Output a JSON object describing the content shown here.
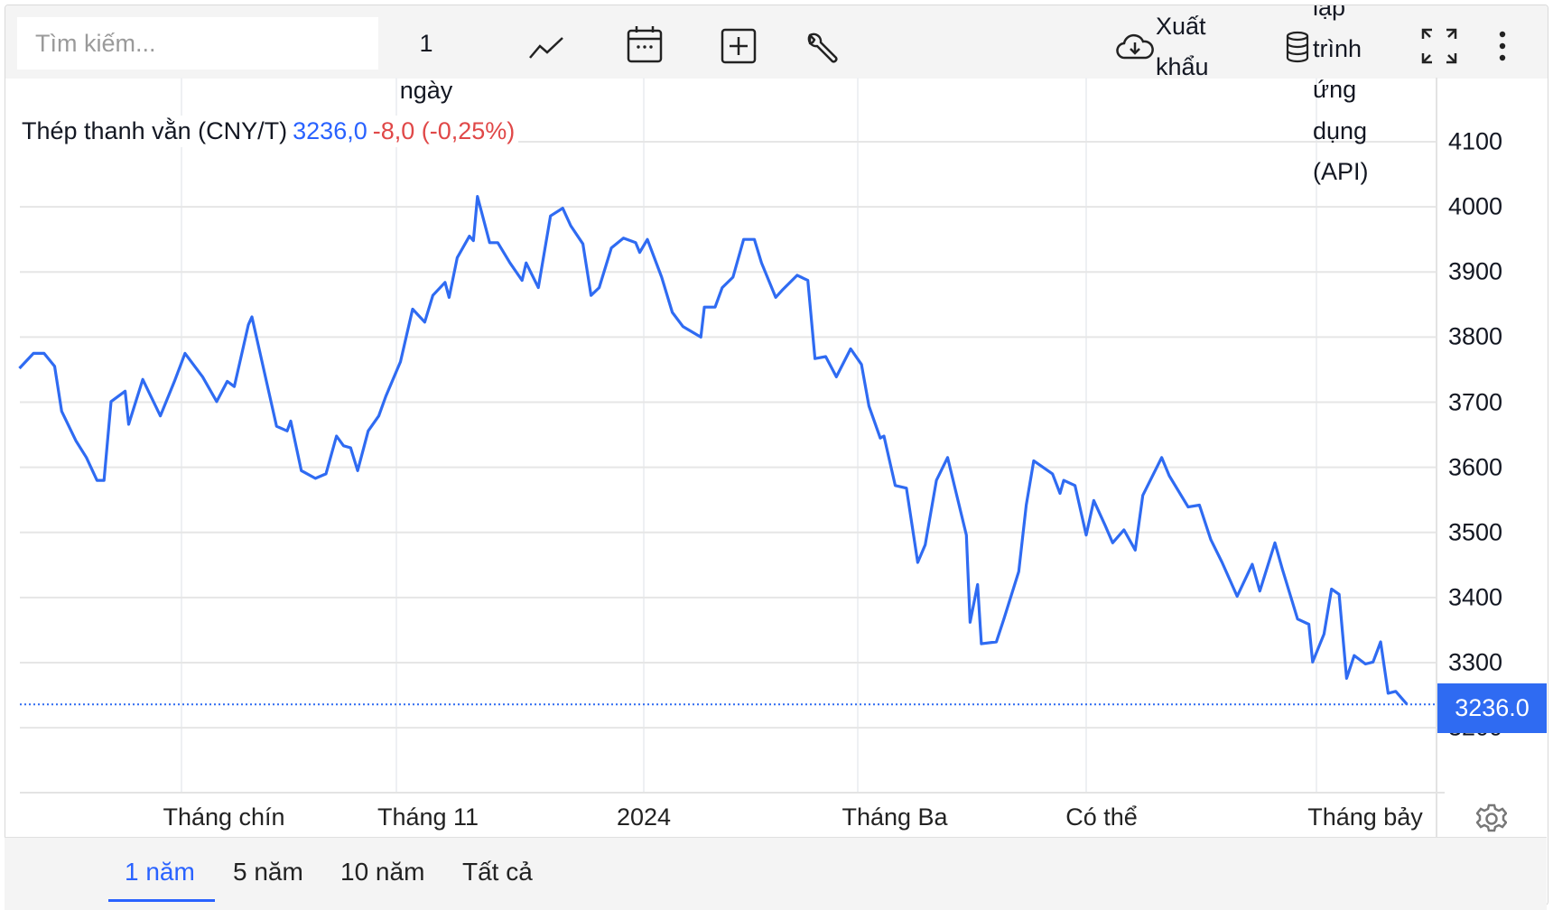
{
  "toolbar": {
    "search_placeholder": "Tìm kiếm...",
    "interval_number": "1",
    "interval_unit": "ngày",
    "icons": [
      "line-chart-icon",
      "calendar-icon",
      "add-indicator-icon",
      "wrench-icon",
      "cloud-download-icon",
      "database-icon",
      "fullscreen-icon",
      "more-vertical-icon"
    ],
    "export_line1": "Xuất",
    "export_line2": "khẩu",
    "api_lines": [
      "lập",
      "trình",
      "ứng",
      "dụng",
      "(API)"
    ]
  },
  "legend": {
    "name": "Thép thanh vằn (CNY/T)",
    "price": "3236,0",
    "change": "-8,0 (-0,25%)"
  },
  "last_price_label": "3236.0",
  "range_buttons": [
    {
      "label": "1 năm",
      "active": true
    },
    {
      "label": "5 năm",
      "active": false
    },
    {
      "label": "10 năm",
      "active": false
    },
    {
      "label": "Tất cả",
      "active": false
    }
  ],
  "colors": {
    "line": "#2f6bf2",
    "change_negative": "#e04848",
    "accent": "#2962ff"
  },
  "chart_data": {
    "type": "line",
    "title": "",
    "xlabel": "",
    "ylabel": "",
    "ylim": [
      3100,
      4150
    ],
    "yticks": [
      4100,
      4000,
      3900,
      3800,
      3700,
      3600,
      3500,
      3400,
      3300,
      3200
    ],
    "xticks": [
      {
        "date": "2023-09-01",
        "label": "Tháng chín"
      },
      {
        "date": "2023-11-01",
        "label": "Tháng 11"
      },
      {
        "date": "2024-01-01",
        "label": "2024"
      },
      {
        "date": "2024-03-01",
        "label": "Tháng Ba"
      },
      {
        "date": "2024-05-01",
        "label": "Có thể"
      },
      {
        "date": "2024-07-01",
        "label": "Tháng bảy"
      }
    ],
    "grid": true,
    "last_value": 3236.0,
    "series": [
      {
        "points": [
          [
            "2023-07-17",
            3752
          ],
          [
            "2023-07-21",
            3775
          ],
          [
            "2023-07-24",
            3775
          ],
          [
            "2023-07-27",
            3755
          ],
          [
            "2023-07-29",
            3686
          ],
          [
            "2023-08-02",
            3641
          ],
          [
            "2023-08-05",
            3615
          ],
          [
            "2023-08-08",
            3580
          ],
          [
            "2023-08-10",
            3580
          ],
          [
            "2023-08-12",
            3701
          ],
          [
            "2023-08-16",
            3717
          ],
          [
            "2023-08-17",
            3666
          ],
          [
            "2023-08-21",
            3735
          ],
          [
            "2023-08-26",
            3679
          ],
          [
            "2023-08-30",
            3732
          ],
          [
            "2023-09-02",
            3775
          ],
          [
            "2023-09-07",
            3739
          ],
          [
            "2023-09-11",
            3701
          ],
          [
            "2023-09-14",
            3732
          ],
          [
            "2023-09-16",
            3724
          ],
          [
            "2023-09-20",
            3819
          ],
          [
            "2023-09-21",
            3831
          ],
          [
            "2023-09-28",
            3663
          ],
          [
            "2023-10-01",
            3656
          ],
          [
            "2023-10-02",
            3671
          ],
          [
            "2023-10-05",
            3595
          ],
          [
            "2023-10-09",
            3583
          ],
          [
            "2023-10-12",
            3590
          ],
          [
            "2023-10-15",
            3648
          ],
          [
            "2023-10-17",
            3633
          ],
          [
            "2023-10-19",
            3630
          ],
          [
            "2023-10-21",
            3595
          ],
          [
            "2023-10-24",
            3656
          ],
          [
            "2023-10-27",
            3679
          ],
          [
            "2023-10-29",
            3709
          ],
          [
            "2023-11-02",
            3762
          ],
          [
            "2023-11-05",
            3843
          ],
          [
            "2023-11-08",
            3823
          ],
          [
            "2023-11-10",
            3864
          ],
          [
            "2023-11-13",
            3884
          ],
          [
            "2023-11-14",
            3861
          ],
          [
            "2023-11-16",
            3922
          ],
          [
            "2023-11-19",
            3955
          ],
          [
            "2023-11-20",
            3948
          ],
          [
            "2023-11-21",
            4016
          ],
          [
            "2023-11-24",
            3945
          ],
          [
            "2023-11-26",
            3945
          ],
          [
            "2023-11-29",
            3914
          ],
          [
            "2023-12-02",
            3887
          ],
          [
            "2023-12-03",
            3914
          ],
          [
            "2023-12-06",
            3876
          ],
          [
            "2023-12-09",
            3986
          ],
          [
            "2023-12-12",
            3998
          ],
          [
            "2023-12-14",
            3971
          ],
          [
            "2023-12-17",
            3943
          ],
          [
            "2023-12-19",
            3864
          ],
          [
            "2023-12-21",
            3876
          ],
          [
            "2023-12-24",
            3937
          ],
          [
            "2023-12-27",
            3952
          ],
          [
            "2023-12-30",
            3945
          ],
          [
            "2023-12-31",
            3930
          ],
          [
            "2024-01-02",
            3950
          ],
          [
            "2024-01-06",
            3892
          ],
          [
            "2024-01-09",
            3838
          ],
          [
            "2024-01-12",
            3816
          ],
          [
            "2024-01-17",
            3800
          ],
          [
            "2024-01-18",
            3846
          ],
          [
            "2024-01-21",
            3846
          ],
          [
            "2024-01-23",
            3876
          ],
          [
            "2024-01-26",
            3892
          ],
          [
            "2024-01-29",
            3950
          ],
          [
            "2024-02-01",
            3950
          ],
          [
            "2024-02-03",
            3914
          ],
          [
            "2024-02-07",
            3861
          ],
          [
            "2024-02-09",
            3873
          ],
          [
            "2024-02-13",
            3895
          ],
          [
            "2024-02-16",
            3887
          ],
          [
            "2024-02-18",
            3767
          ],
          [
            "2024-02-21",
            3770
          ],
          [
            "2024-02-24",
            3739
          ],
          [
            "2024-02-28",
            3782
          ],
          [
            "2024-03-02",
            3758
          ],
          [
            "2024-03-04",
            3694
          ],
          [
            "2024-03-07",
            3645
          ],
          [
            "2024-03-08",
            3648
          ],
          [
            "2024-03-11",
            3572
          ],
          [
            "2024-03-14",
            3568
          ],
          [
            "2024-03-17",
            3454
          ],
          [
            "2024-03-19",
            3481
          ],
          [
            "2024-03-22",
            3580
          ],
          [
            "2024-03-25",
            3615
          ],
          [
            "2024-03-30",
            3496
          ],
          [
            "2024-03-31",
            3362
          ],
          [
            "2024-04-02",
            3420
          ],
          [
            "2024-04-03",
            3329
          ],
          [
            "2024-04-07",
            3332
          ],
          [
            "2024-04-09",
            3367
          ],
          [
            "2024-04-13",
            3440
          ],
          [
            "2024-04-15",
            3542
          ],
          [
            "2024-04-17",
            3610
          ],
          [
            "2024-04-22",
            3590
          ],
          [
            "2024-04-24",
            3560
          ],
          [
            "2024-04-25",
            3580
          ],
          [
            "2024-04-28",
            3572
          ],
          [
            "2024-05-01",
            3496
          ],
          [
            "2024-05-03",
            3549
          ],
          [
            "2024-05-06",
            3511
          ],
          [
            "2024-05-08",
            3484
          ],
          [
            "2024-05-11",
            3504
          ],
          [
            "2024-05-14",
            3473
          ],
          [
            "2024-05-16",
            3557
          ],
          [
            "2024-05-21",
            3615
          ],
          [
            "2024-05-23",
            3587
          ],
          [
            "2024-05-28",
            3539
          ],
          [
            "2024-05-31",
            3542
          ],
          [
            "2024-06-03",
            3489
          ],
          [
            "2024-06-06",
            3454
          ],
          [
            "2024-06-10",
            3402
          ],
          [
            "2024-06-14",
            3451
          ],
          [
            "2024-06-16",
            3410
          ],
          [
            "2024-06-20",
            3484
          ],
          [
            "2024-06-22",
            3443
          ],
          [
            "2024-06-26",
            3367
          ],
          [
            "2024-06-29",
            3359
          ],
          [
            "2024-06-30",
            3301
          ],
          [
            "2024-07-03",
            3344
          ],
          [
            "2024-07-05",
            3413
          ],
          [
            "2024-07-07",
            3405
          ],
          [
            "2024-07-09",
            3276
          ],
          [
            "2024-07-11",
            3311
          ],
          [
            "2024-07-14",
            3298
          ],
          [
            "2024-07-16",
            3301
          ],
          [
            "2024-07-18",
            3332
          ],
          [
            "2024-07-20",
            3253
          ],
          [
            "2024-07-22",
            3256
          ],
          [
            "2024-07-25",
            3236
          ]
        ]
      }
    ]
  }
}
